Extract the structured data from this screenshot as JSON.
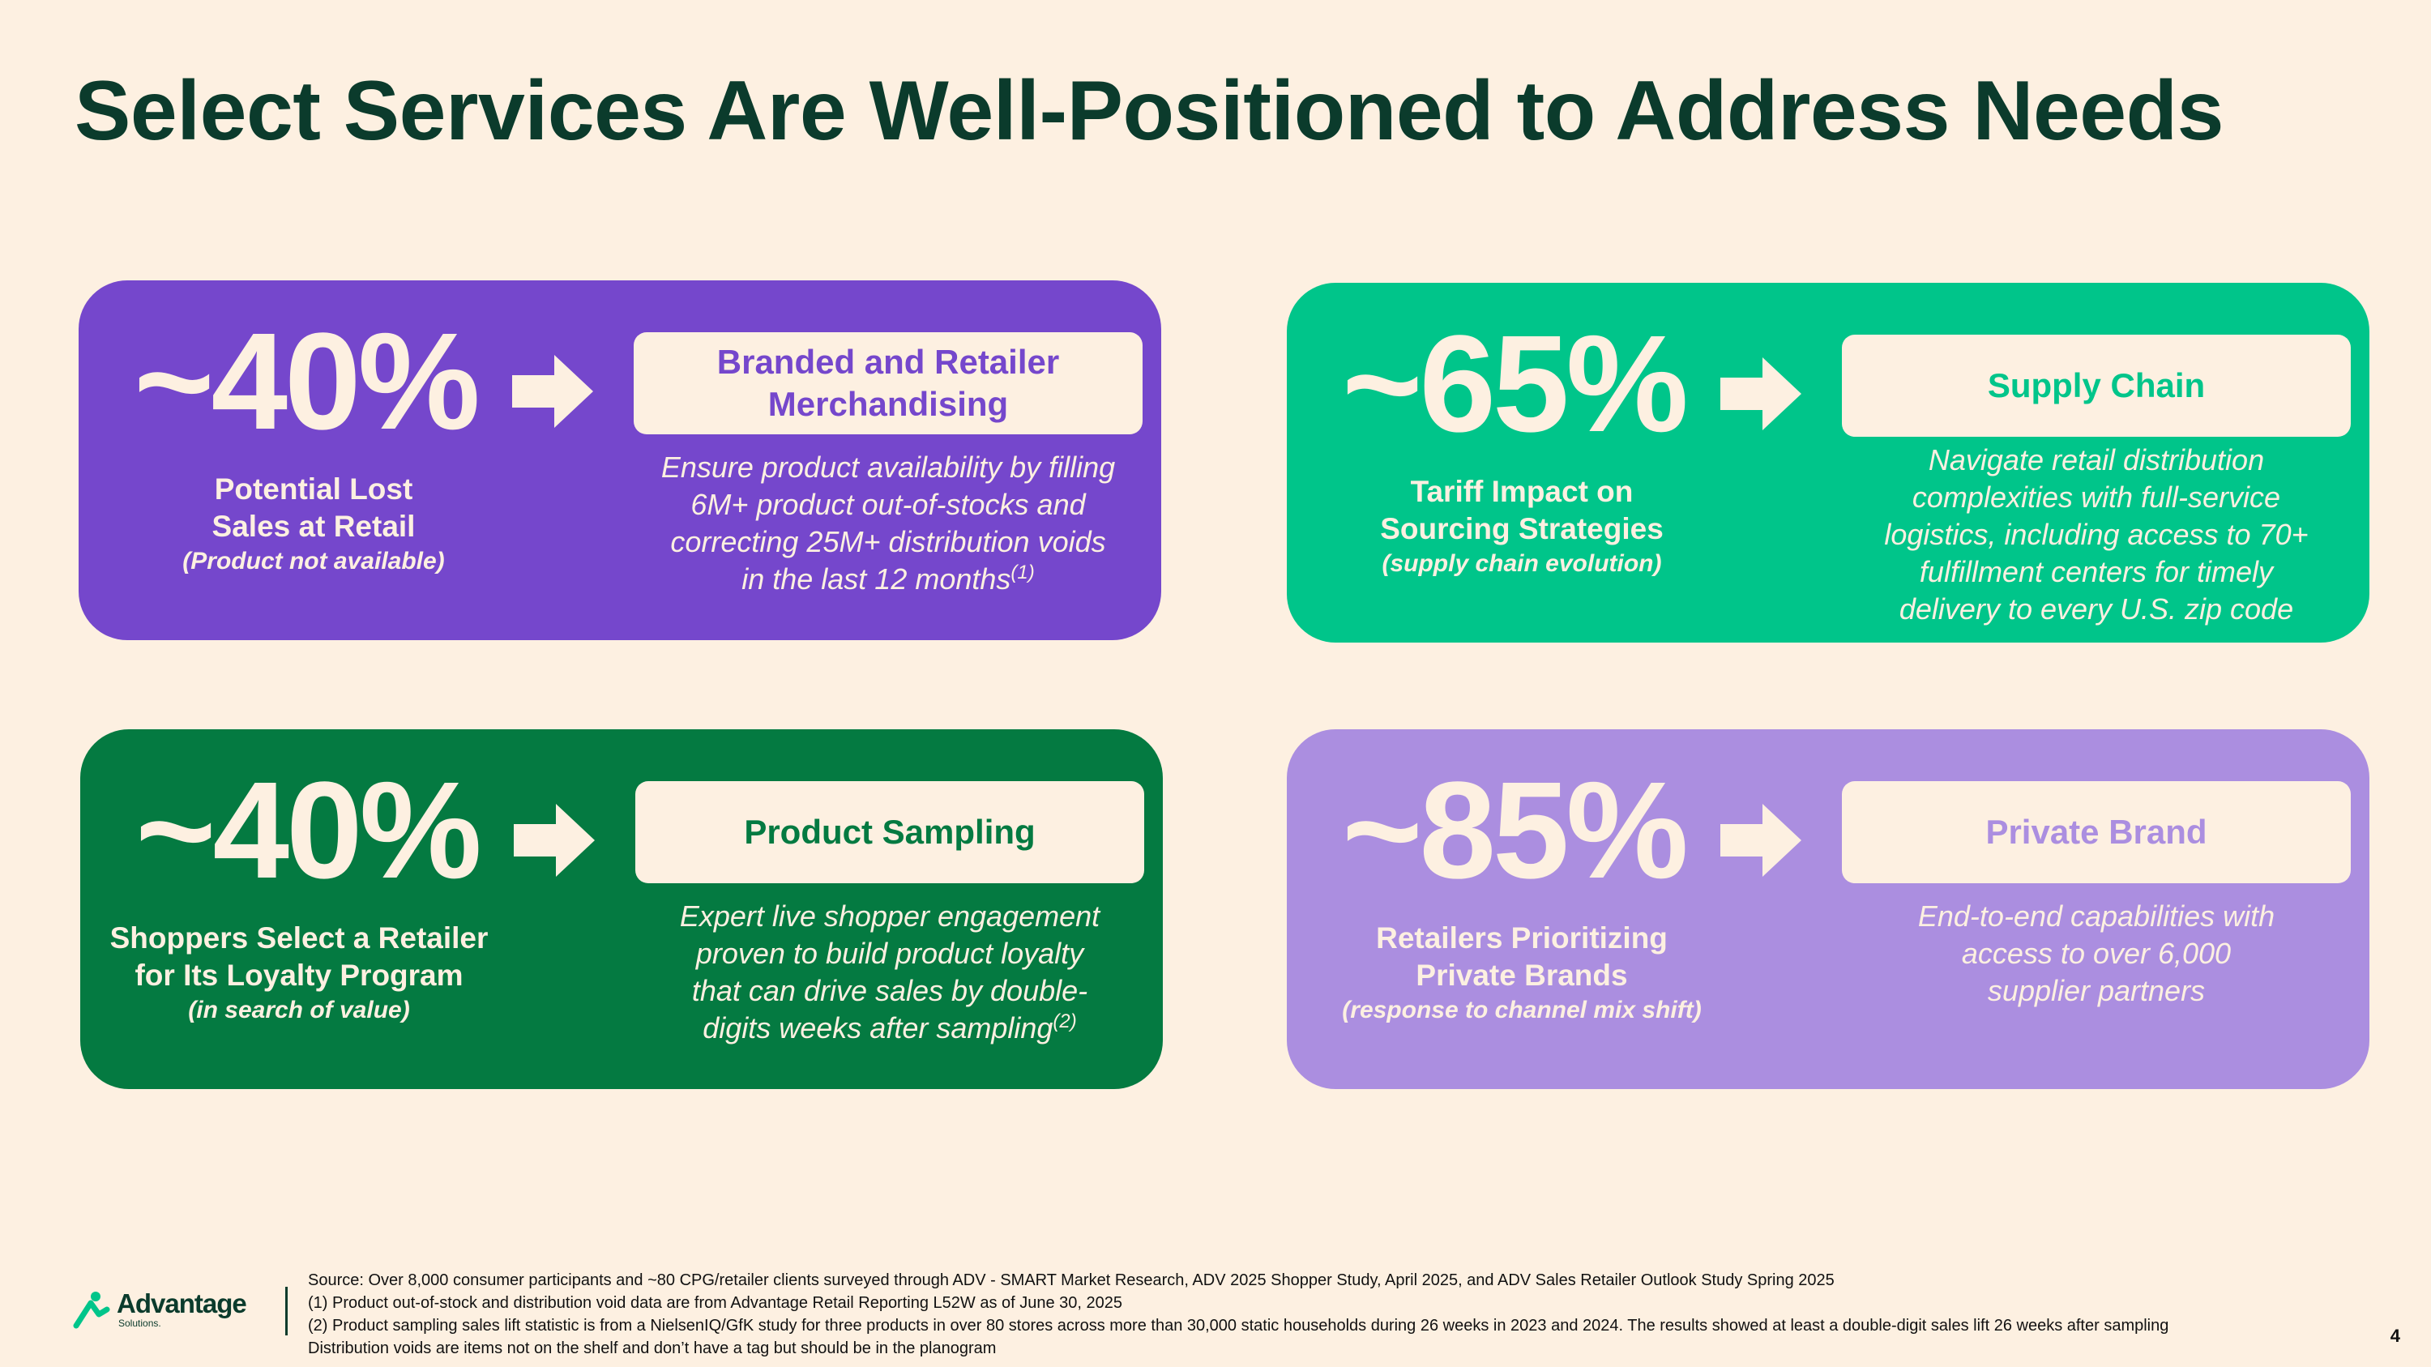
{
  "title": "Select Services Are Well-Positioned to Address Needs",
  "colors": {
    "background": "#FDF0E1",
    "title": "#0B3B2C",
    "purple": "#7547CC",
    "green": "#00C58A",
    "dark_green": "#047A41",
    "lavender": "#AB8EE0"
  },
  "cards": [
    {
      "stat": "~40%",
      "stat_label": [
        "Potential Lost",
        "Sales at Retail"
      ],
      "stat_note": "(Product not available)",
      "service": [
        "Branded and Retailer",
        "Merchandising"
      ],
      "description": [
        "Ensure product availability by filling",
        "6M+ product out-of-stocks and",
        "correcting 25M+ distribution voids",
        "in the last 12 months"
      ],
      "footnote_ref": "(1)",
      "icon": "arrow-right-icon"
    },
    {
      "stat": "~65%",
      "stat_label": [
        "Tariff Impact on",
        "Sourcing Strategies"
      ],
      "stat_note": "(supply chain evolution)",
      "service": [
        "Supply Chain"
      ],
      "description": [
        "Navigate retail distribution",
        "complexities with full-service",
        "logistics, including access to 70+",
        "fulfillment centers for timely",
        "delivery to every U.S. zip code"
      ],
      "footnote_ref": "",
      "icon": "arrow-right-icon"
    },
    {
      "stat": "~40%",
      "stat_label": [
        "Shoppers Select a Retailer",
        "for Its Loyalty Program"
      ],
      "stat_note": "(in search of value)",
      "service": [
        "Product Sampling"
      ],
      "description": [
        "Expert live shopper engagement",
        "proven to build product loyalty",
        "that can drive sales by double-",
        "digits weeks after sampling"
      ],
      "footnote_ref": "(2)",
      "icon": "arrow-right-icon"
    },
    {
      "stat": "~85%",
      "stat_label": [
        "Retailers Prioritizing",
        "Private Brands"
      ],
      "stat_note": "(response to channel mix shift)",
      "service": [
        "Private Brand"
      ],
      "description": [
        "End-to-end capabilities with",
        "access to over 6,000",
        "supplier partners"
      ],
      "footnote_ref": "",
      "icon": "arrow-right-icon"
    }
  ],
  "footer": {
    "logo_name": "Advantage",
    "logo_sub": "Solutions.",
    "logo_icon": "advantage-logo-icon",
    "footnotes": [
      "Source: Over 8,000 consumer participants and ~80 CPG/retailer clients surveyed through ADV - SMART Market Research, ADV 2025 Shopper Study, April 2025, and ADV Sales Retailer Outlook Study Spring 2025",
      "(1) Product out-of-stock and distribution void data are from Advantage Retail Reporting L52W as of June 30, 2025",
      "(2) Product sampling sales lift statistic is from a NielsenIQ/GfK study for three products in over 80 stores across more than 30,000 static households during 26 weeks in 2023 and 2024. The results showed at least a double-digit sales lift 26 weeks after sampling",
      "Distribution voids are items not on the shelf and don’t have a tag but should be in the planogram"
    ],
    "page_number": "4"
  }
}
